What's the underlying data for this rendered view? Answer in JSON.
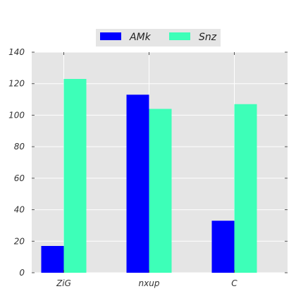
{
  "chart_data": {
    "type": "bar",
    "categories": [
      "ZiG",
      "nxup",
      "C"
    ],
    "series": [
      {
        "name": "AMk",
        "values": [
          17,
          113,
          33
        ],
        "color": "#0000ff"
      },
      {
        "name": "Snz",
        "values": [
          123,
          104,
          107
        ],
        "color": "#3dffb8"
      }
    ],
    "ylim": [
      0,
      140
    ],
    "yticks": [
      0,
      20,
      40,
      60,
      80,
      100,
      120,
      140
    ],
    "grid": true,
    "legend_position": "top-center",
    "plot_background": "#e5e5e5",
    "title": "",
    "xlabel": "",
    "ylabel": ""
  }
}
